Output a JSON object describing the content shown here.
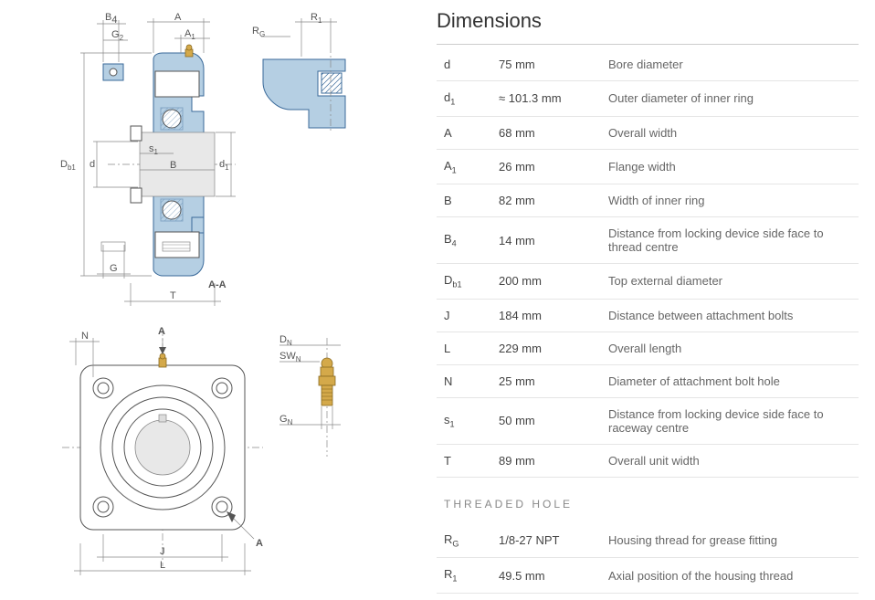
{
  "section_title": "Dimensions",
  "subsection_threaded": "THREADED HOLE",
  "rows": [
    {
      "sym": "d",
      "sub": "",
      "val": "75 mm",
      "desc": "Bore diameter"
    },
    {
      "sym": "d",
      "sub": "1",
      "val": "≈ 101.3 mm",
      "desc": "Outer diameter of inner ring"
    },
    {
      "sym": "A",
      "sub": "",
      "val": "68 mm",
      "desc": "Overall width"
    },
    {
      "sym": "A",
      "sub": "1",
      "val": "26 mm",
      "desc": "Flange width"
    },
    {
      "sym": "B",
      "sub": "",
      "val": "82 mm",
      "desc": "Width of inner ring"
    },
    {
      "sym": "B",
      "sub": "4",
      "val": "14 mm",
      "desc": "Distance from locking device side face to thread centre"
    },
    {
      "sym": "D",
      "sub": "b1",
      "val": "200 mm",
      "desc": "Top external diameter"
    },
    {
      "sym": "J",
      "sub": "",
      "val": "184 mm",
      "desc": "Distance between attachment bolts"
    },
    {
      "sym": "L",
      "sub": "",
      "val": "229 mm",
      "desc": "Overall length"
    },
    {
      "sym": "N",
      "sub": "",
      "val": "25 mm",
      "desc": "Diameter of attachment bolt hole"
    },
    {
      "sym": "s",
      "sub": "1",
      "val": "50 mm",
      "desc": "Distance from locking device side face to raceway centre"
    },
    {
      "sym": "T",
      "sub": "",
      "val": "89 mm",
      "desc": "Overall unit width"
    }
  ],
  "threaded_rows": [
    {
      "sym": "R",
      "sub": "G",
      "val": "1/8-27 NPT",
      "desc": "Housing thread for grease fitting"
    },
    {
      "sym": "R",
      "sub": "1",
      "val": "49.5 mm",
      "desc": "Axial position of the housing thread"
    }
  ],
  "drawing_labels": {
    "B4": "B",
    "B4_sub": "4",
    "G2": "G",
    "G2_sub": "2",
    "A": "A",
    "A1": "A",
    "A1_sub": "1",
    "RG": "R",
    "RG_sub": "G",
    "R1": "R",
    "R1_sub": "1",
    "Db1": "D",
    "Db1_sub": "b1",
    "d": "d",
    "d1": "d",
    "d1_sub": "1",
    "s1": "s",
    "s1_sub": "1",
    "B": "B",
    "G": "G",
    "T": "T",
    "AA": "A-A",
    "N": "N",
    "Aarrow": "A",
    "Aarrow2": "A",
    "DN": "D",
    "DN_sub": "N",
    "SWN": "SW",
    "SWN_sub": "N",
    "GN": "G",
    "GN_sub": "N",
    "J": "J",
    "L": "L"
  },
  "colors": {
    "part_fill": "#b5cfe3",
    "part_stroke": "#3a6a9a",
    "dim_line": "#888888",
    "text": "#555555"
  }
}
